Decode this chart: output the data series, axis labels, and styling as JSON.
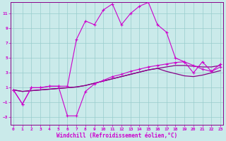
{
  "xlabel": "Windchill (Refroidissement éolien,°C)",
  "bg_color": "#caeaea",
  "grid_color": "#99cccc",
  "line_color_bright": "#cc00cc",
  "line_color_dark": "#880088",
  "xlim": [
    -0.3,
    23.3
  ],
  "ylim": [
    -4,
    12.5
  ],
  "xticks": [
    0,
    1,
    2,
    3,
    4,
    5,
    6,
    7,
    8,
    9,
    10,
    11,
    12,
    13,
    14,
    15,
    16,
    17,
    18,
    19,
    20,
    21,
    22,
    23
  ],
  "yticks": [
    -3,
    -1,
    1,
    3,
    5,
    7,
    9,
    11
  ],
  "series1": [
    0.7,
    -1.2,
    1.0,
    1.0,
    1.2,
    1.2,
    1.2,
    7.5,
    10.0,
    9.5,
    11.5,
    12.3,
    9.5,
    11.0,
    12.0,
    12.5,
    9.5,
    8.5,
    5.0,
    4.5,
    3.0,
    4.5,
    3.2,
    4.2
  ],
  "series2": [
    0.7,
    -1.2,
    1.0,
    1.0,
    1.2,
    1.2,
    -2.8,
    -2.8,
    0.5,
    1.5,
    2.0,
    2.5,
    2.8,
    3.2,
    3.5,
    3.8,
    4.0,
    4.2,
    4.4,
    4.5,
    4.0,
    3.5,
    3.2,
    3.8
  ],
  "series3": [
    0.7,
    0.5,
    0.6,
    0.7,
    0.8,
    0.9,
    1.0,
    1.1,
    1.3,
    1.6,
    1.9,
    2.2,
    2.5,
    2.8,
    3.1,
    3.4,
    3.6,
    3.8,
    4.0,
    4.0,
    3.9,
    3.8,
    3.8,
    4.0
  ],
  "series4": [
    0.7,
    0.5,
    0.6,
    0.7,
    0.8,
    0.9,
    1.0,
    1.1,
    1.3,
    1.6,
    1.9,
    2.2,
    2.5,
    2.8,
    3.1,
    3.4,
    3.6,
    3.2,
    2.9,
    2.6,
    2.5,
    2.7,
    3.0,
    3.3
  ]
}
